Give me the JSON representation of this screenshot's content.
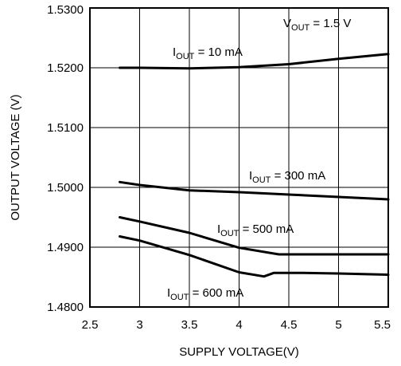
{
  "chart_data": {
    "type": "line",
    "xlabel": "SUPPLY VOLTAGE(V)",
    "ylabel": "OUTPUT VOLTAGE (V)",
    "xlim": [
      2.5,
      5.5
    ],
    "ylim": [
      1.48,
      1.53
    ],
    "grid": true,
    "x_ticks": [
      2.5,
      3,
      3.5,
      4,
      4.5,
      5,
      5.5
    ],
    "x_tick_labels": [
      "2.5",
      "3",
      "3.5",
      "4",
      "4.5",
      "5",
      "5.5"
    ],
    "y_ticks": [
      1.48,
      1.49,
      1.5,
      1.51,
      1.52,
      1.53
    ],
    "y_tick_labels": [
      "1.4800",
      "1.4900",
      "1.5000",
      "1.5100",
      "1.5200",
      "1.5300"
    ],
    "annotations": [
      {
        "main": "V",
        "sub": "OUT",
        "rest": " = 1.5 V"
      }
    ],
    "series": [
      {
        "name": "I_OUT = 10 mA",
        "label": {
          "main": "I",
          "sub": "OUT",
          "rest": " = 10 mA"
        },
        "x": [
          2.8,
          3.0,
          3.5,
          4.0,
          4.5,
          5.0,
          5.5
        ],
        "y": [
          1.52,
          1.52,
          1.5199,
          1.5201,
          1.5206,
          1.5215,
          1.5223
        ]
      },
      {
        "name": "I_OUT = 300 mA",
        "label": {
          "main": "I",
          "sub": "OUT",
          "rest": " = 300 mA"
        },
        "x": [
          2.8,
          3.0,
          3.5,
          4.0,
          4.5,
          5.0,
          5.5
        ],
        "y": [
          1.5009,
          1.5004,
          1.4995,
          1.4992,
          1.4988,
          1.4984,
          1.498
        ]
      },
      {
        "name": "I_OUT = 500 mA",
        "label": {
          "main": "I",
          "sub": "OUT",
          "rest": " = 500 mA"
        },
        "x": [
          2.8,
          3.0,
          3.5,
          4.0,
          4.4,
          4.6,
          5.0,
          5.5
        ],
        "y": [
          1.495,
          1.4943,
          1.4924,
          1.4899,
          1.4888,
          1.4888,
          1.4888,
          1.4888
        ]
      },
      {
        "name": "I_OUT = 600 mA",
        "label": {
          "main": "I",
          "sub": "OUT",
          "rest": " = 600 mA"
        },
        "x": [
          2.8,
          3.0,
          3.5,
          4.0,
          4.25,
          4.35,
          4.6,
          5.0,
          5.5
        ],
        "y": [
          1.4918,
          1.4911,
          1.4887,
          1.4858,
          1.4851,
          1.4857,
          1.4857,
          1.4856,
          1.4854
        ]
      }
    ]
  }
}
